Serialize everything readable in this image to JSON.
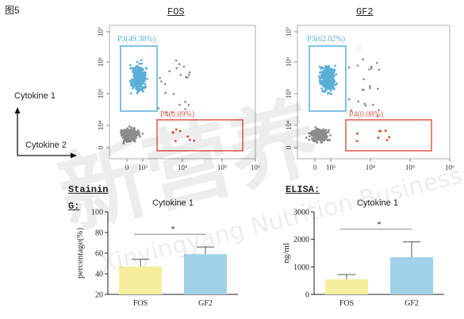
{
  "figure_label": "图5",
  "axis_labels": {
    "vertical": "Cytokine 1",
    "horizontal": "Cytokine 2"
  },
  "flow_panels": [
    {
      "title": "FOS",
      "gate_high": "P3(49.38%)",
      "gate_low": "P4(0.09%)",
      "x_ticks": [
        "0",
        "10³",
        "10⁴",
        "10⁵",
        "10⁶"
      ],
      "y_ticks": [
        "10⁷",
        "10⁶",
        "10⁵",
        "10⁴",
        "0"
      ],
      "gate_high_color": "#5aaed8",
      "gate_low_color": "#e05a48"
    },
    {
      "title": "GF2",
      "gate_high": "P3(62.02%)",
      "gate_low": "P4(0.08%)",
      "x_ticks": [
        "0",
        "10³",
        "10⁴",
        "10⁵",
        "10⁶"
      ],
      "y_ticks": [
        "10⁷",
        "10⁶",
        "10⁵",
        "10⁴",
        "0"
      ],
      "gate_high_color": "#5aaed8",
      "gate_low_color": "#e05a48"
    }
  ],
  "sections": {
    "staining": [
      "Stainin",
      "G:"
    ],
    "elisa": "ELISA:"
  },
  "watermark": {
    "chinese": "新营养",
    "english": "Xinyingyang Nutrition Business",
    "registered": "®"
  },
  "chart_data": [
    {
      "type": "bar",
      "title": "Cytokine 1",
      "categories": [
        "FOS",
        "GF2"
      ],
      "values": [
        47,
        59
      ],
      "errors": [
        7,
        7
      ],
      "ylabel": "percentage(%)",
      "ylim": [
        20,
        100
      ],
      "yticks": [
        20,
        40,
        60,
        80,
        100
      ],
      "significance": "*",
      "colors": [
        "#f7ee9d",
        "#9fd2e7"
      ]
    },
    {
      "type": "bar",
      "title": "Cytokine 1",
      "categories": [
        "FOS",
        "GF2"
      ],
      "values": [
        550,
        1350
      ],
      "errors": [
        170,
        560
      ],
      "ylabel": "ng/ml",
      "ylim": [
        0,
        3000
      ],
      "yticks": [
        0,
        1000,
        2000,
        3000
      ],
      "significance": "*",
      "colors": [
        "#f7ee9d",
        "#9fd2e7"
      ]
    }
  ]
}
